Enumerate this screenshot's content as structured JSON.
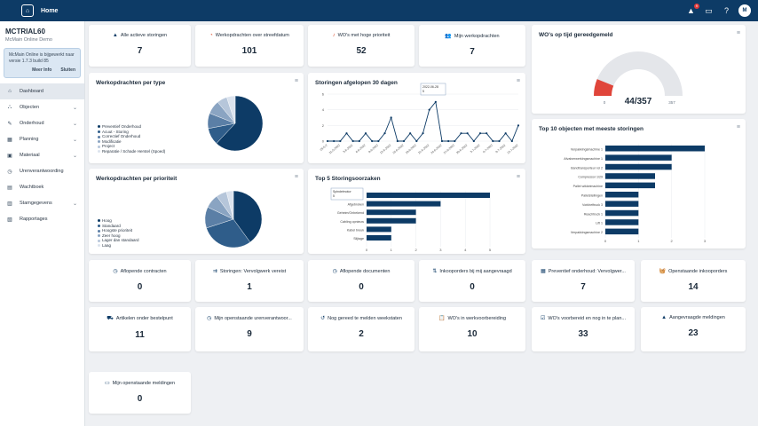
{
  "header": {
    "title": "Home",
    "notification_count": "9",
    "avatar": "M"
  },
  "sidebar": {
    "org_name": "MCTRIAL60",
    "org_sub": "McMain Online Demo",
    "notice": {
      "text": "McMain Online is bijgewerkt naar versie 1.7.3 build 85",
      "more": "Meer Info",
      "close": "Sluiten"
    },
    "items": [
      {
        "label": "Dashboard",
        "icon": "home-icon"
      },
      {
        "label": "Objecten",
        "icon": "hierarchy-icon"
      },
      {
        "label": "Onderhoud",
        "icon": "wrench-icon"
      },
      {
        "label": "Planning",
        "icon": "calendar-icon"
      },
      {
        "label": "Materiaal",
        "icon": "box-icon"
      },
      {
        "label": "Urenverantwoording",
        "icon": "clock-icon"
      },
      {
        "label": "Wachtboek",
        "icon": "book-icon"
      },
      {
        "label": "Stamgegevens",
        "icon": "table-icon"
      },
      {
        "label": "Rapportages",
        "icon": "report-icon"
      }
    ]
  },
  "kpi_top": [
    {
      "label": "Alle actieve storingen",
      "value": "7",
      "icon": "warning-icon"
    },
    {
      "label": "Werkopdrachten over streefdatum",
      "value": "101",
      "icon": "alarm-icon"
    },
    {
      "label": "WO's met hoge prioriteit",
      "value": "52",
      "icon": "bell-icon"
    },
    {
      "label": "Mijn werkopdrachten",
      "value": "7",
      "icon": "users-icon"
    }
  ],
  "gauge": {
    "title": "WO's op tijd gereedgemeld",
    "value_text": "44/357",
    "min": "0",
    "max": "357",
    "value": 44,
    "total": 357
  },
  "pie_type": {
    "title": "Werkopdrachten per type",
    "legend": [
      "Preventief Onderhoud",
      "Acuut - Storing",
      "Correctief Onderhoud",
      "Modificatie",
      "Project",
      "Reparatie / Schade Herstel (Spoed)"
    ],
    "values": [
      62,
      10,
      9,
      8,
      6,
      5
    ],
    "colors": [
      "#0d3b66",
      "#2f5d8a",
      "#5b7fa6",
      "#8aa4c2",
      "#b6c6da",
      "#dbe3ee"
    ]
  },
  "line": {
    "title": "Storingen afgelopen 30 dagen",
    "tooltip_date": "2022-06-28",
    "tooltip_val": "5",
    "yticks": [
      "0",
      "2",
      "4",
      "6"
    ],
    "ymax": 6,
    "values": [
      0,
      0,
      0,
      1,
      0,
      0,
      1,
      0,
      0,
      1,
      3,
      0,
      0,
      1,
      0,
      1,
      4,
      5,
      0,
      0,
      0,
      1,
      1,
      0,
      1,
      1,
      0,
      0,
      1,
      0,
      2
    ],
    "xlabels": [
      "28-5-2",
      "31-5-2022",
      "3-6-2022",
      "6-6-2022",
      "9-6-2022",
      "12-6-2022",
      "15-6-2022",
      "18-6-2022",
      "21-6-2022",
      "24-6-2022",
      "27-6-2022",
      "30-6-2022",
      "3-7-2022",
      "6-7-2022",
      "9-7-2022",
      "12-7-2022"
    ]
  },
  "pie_prio": {
    "title": "Werkopdrachten per prioriteit",
    "legend": [
      "Hoog",
      "Standaard",
      "Hoogste prioriteit",
      "Zeer hoog",
      "Lager dan standaard",
      "Laag"
    ],
    "values": [
      40,
      30,
      12,
      8,
      6,
      4
    ],
    "colors": [
      "#0d3b66",
      "#2f5d8a",
      "#5b7fa6",
      "#8aa4c2",
      "#b6c6da",
      "#dbe3ee"
    ]
  },
  "top5": {
    "title": "Top 5 Storingsoorzaken",
    "tooltip_label": "Spindelmotor",
    "tooltip_val": "5",
    "labels": [
      "",
      "Afgebroken",
      "Geheim/Onbekend",
      "Cabling opnieuw",
      "Kabel breuk",
      "Slijtage"
    ],
    "values": [
      5,
      3,
      2,
      2,
      1,
      1
    ],
    "xticks": [
      "0",
      "1",
      "2",
      "3",
      "4",
      "5"
    ],
    "xmax": 5
  },
  "top10": {
    "title": "Top 10 objecten met meeste storingen",
    "labels": [
      "Verpakkingsmachine 1",
      "Afvalverwerkingsmachine 1",
      "Bandtransporteur rol 2",
      "Compressor 1/29",
      "Pallet wikkelmachine",
      "Palletstellingen",
      "Vorkheftruck 3",
      "Reachtruck 1",
      "Lift 1",
      "Verpakkingsmachine 2"
    ],
    "values": [
      3,
      2,
      2,
      1.5,
      1.5,
      1,
      1,
      1,
      1,
      1
    ],
    "xticks": [
      "0",
      "1",
      "2",
      "3"
    ],
    "xmax": 3
  },
  "kpi_row2": [
    {
      "label": "Aflopende contracten",
      "value": "0",
      "icon": "clock-icon"
    },
    {
      "label": "Storingen: Vervolgwerk vereist",
      "value": "1",
      "icon": "arrows-icon"
    },
    {
      "label": "Aflopende documenten",
      "value": "0",
      "icon": "clock-icon"
    },
    {
      "label": "Inkooporders bij mij aangevraagd",
      "value": "0",
      "icon": "sort-icon"
    },
    {
      "label": "Preventief onderhoud: Vervolgwer...",
      "value": "7",
      "icon": "calendar-icon"
    },
    {
      "label": "Openstaande inkooporders",
      "value": "14",
      "icon": "basket-icon"
    }
  ],
  "kpi_row3": [
    {
      "label": "Artikelen onder bestelpunt",
      "value": "11",
      "icon": "truck-icon"
    },
    {
      "label": "Mijn openstaande urenverantwoor...",
      "value": "9",
      "icon": "clock-icon"
    },
    {
      "label": "Nog gereed te melden weekstaten",
      "value": "2",
      "icon": "history-icon"
    },
    {
      "label": "WO's in werkvoorbereiding",
      "value": "10",
      "icon": "clipboard-icon"
    },
    {
      "label": "WO's voorbereid en nog in te plan...",
      "value": "33",
      "icon": "check-icon"
    },
    {
      "label": "Aangevraagde meldingen",
      "value": "23",
      "icon": "warning-icon"
    }
  ],
  "kpi_row4": [
    {
      "label": "Mijn openstaande meldingen",
      "value": "0",
      "icon": "chat-icon"
    }
  ]
}
